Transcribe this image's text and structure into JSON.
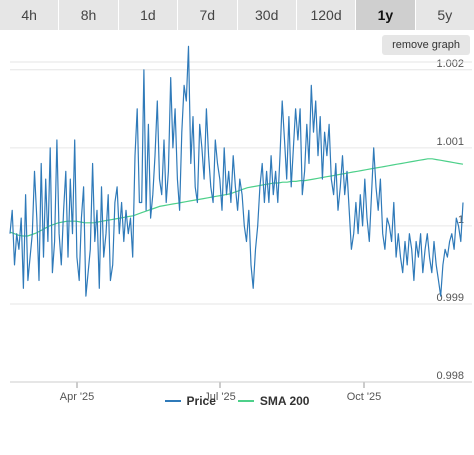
{
  "range_buttons": [
    {
      "label": "4h",
      "active": false
    },
    {
      "label": "8h",
      "active": false
    },
    {
      "label": "1d",
      "active": false
    },
    {
      "label": "7d",
      "active": false
    },
    {
      "label": "30d",
      "active": false
    },
    {
      "label": "120d",
      "active": false
    },
    {
      "label": "1y",
      "active": true
    },
    {
      "label": "5y",
      "active": false
    }
  ],
  "remove_graph_label": "remove graph",
  "colors": {
    "price": "#2f7ab9",
    "sma": "#4dd08a",
    "grid": "#e6e6e6"
  },
  "chart_data": {
    "type": "line",
    "x_ticks": [
      "Apr '25",
      "Jul '25",
      "Oct '25"
    ],
    "y_ticks": [
      "0.998",
      "0.999",
      "1",
      "1.001",
      "1.002"
    ],
    "ylim": [
      0.998,
      1.0021
    ],
    "series": [
      {
        "name": "Price",
        "values": [
          0.9999,
          1.0002,
          0.9995,
          0.9999,
          0.9997,
          1.0001,
          0.9992,
          1.0004,
          0.9993,
          0.9996,
          0.9999,
          1.0007,
          1.0001,
          0.9993,
          1.0008,
          0.9996,
          1.0006,
          0.9998,
          1.001,
          0.9994,
          0.9998,
          1.0011,
          0.9999,
          0.9995,
          1.0002,
          1.0007,
          0.9996,
          1.0006,
          0.9999,
          1.0011,
          0.9996,
          0.9993,
          1.0001,
          1.0005,
          0.9991,
          0.9994,
          0.9997,
          1.0008,
          0.9998,
          1.0002,
          0.9992,
          1.0005,
          0.9996,
          0.9999,
          1.0004,
          0.9993,
          0.9995,
          1.0003,
          1.0005,
          0.9999,
          1.0003,
          0.9998,
          1.0002,
          0.9999,
          1.0001,
          0.9996,
          1.0009,
          1.0015,
          1.0003,
          1.0003,
          1.002,
          1.0002,
          1.0013,
          1.0001,
          1.0004,
          1.0009,
          1.0016,
          1.0006,
          1.0004,
          1.0011,
          1.0003,
          1.0007,
          1.0019,
          1.001,
          1.0015,
          1.0006,
          1.0002,
          1.0012,
          1.0018,
          1.0016,
          1.0023,
          1.0008,
          1.0014,
          1.0005,
          1.0003,
          1.0013,
          1.001,
          1.0006,
          1.0015,
          1.0009,
          1.0005,
          1.0003,
          1.0011,
          1.0008,
          1.0006,
          1.0002,
          1.001,
          1.0004,
          1.0007,
          1.0003,
          1.0009,
          1.0005,
          1.0002,
          1.0006,
          1.0004,
          1.0,
          0.9998,
          1.0002,
          0.9995,
          0.9992,
          0.9997,
          1.0,
          1.0005,
          1.0008,
          1.0003,
          1.0007,
          1.0003,
          1.0009,
          1.0004,
          1.0007,
          1.0003,
          1.0009,
          1.0016,
          1.0011,
          1.0006,
          1.0014,
          1.0005,
          1.001,
          1.0015,
          1.0011,
          1.0015,
          1.0004,
          1.0007,
          1.0013,
          1.0008,
          1.0018,
          1.0012,
          1.0016,
          1.0009,
          1.0014,
          1.0006,
          1.0012,
          1.0009,
          1.0013,
          1.0006,
          1.0004,
          1.0008,
          1.0002,
          1.0005,
          1.0009,
          1.0004,
          1.0007,
          1.0002,
          0.9997,
          0.9999,
          1.0003,
          0.9999,
          1.0004,
          1.0,
          1.0006,
          1.0001,
          0.9998,
          1.0004,
          1.001,
          1.0005,
          1.0002,
          1.0006,
          0.9999,
          0.9997,
          1.0001,
          1.0,
          0.9998,
          1.0003,
          0.9996,
          0.9999,
          0.9996,
          0.9994,
          0.9998,
          0.9995,
          0.9999,
          0.9997,
          0.9993,
          0.9998,
          0.9996,
          0.9999,
          0.9994,
          0.9997,
          0.9999,
          0.9996,
          0.9994,
          0.9998,
          0.9995,
          0.9993,
          0.9991,
          0.9995,
          0.9997,
          0.9996,
          0.9998,
          0.9999,
          0.9997,
          1.0001,
          1.0,
          0.9998,
          1.0003
        ]
      },
      {
        "name": "SMA 200",
        "values": [
          0.99992,
          0.9999,
          0.99988,
          0.99987,
          0.99987,
          0.99989,
          0.99991,
          0.99994,
          0.99997,
          1.0,
          1.00002,
          1.00004,
          1.00005,
          1.00006,
          1.00006,
          1.00006,
          1.00005,
          1.00004,
          1.00004,
          1.00004,
          1.00005,
          1.00006,
          1.00007,
          1.00008,
          1.00009,
          1.0001,
          1.00011,
          1.00012,
          1.00013,
          1.00015,
          1.00017,
          1.00019,
          1.00021,
          1.00023,
          1.00025,
          1.00026,
          1.00027,
          1.00028,
          1.00029,
          1.0003,
          1.00031,
          1.00032,
          1.00033,
          1.00034,
          1.00035,
          1.00036,
          1.00037,
          1.00038,
          1.00039,
          1.0004,
          1.00041,
          1.00043,
          1.00045,
          1.00047,
          1.00049,
          1.0005,
          1.00051,
          1.00052,
          1.00053,
          1.00054,
          1.00055,
          1.00055,
          1.00056,
          1.00056,
          1.00057,
          1.00057,
          1.00058,
          1.00058,
          1.00059,
          1.0006,
          1.00061,
          1.00062,
          1.00063,
          1.00064,
          1.00065,
          1.00066,
          1.00067,
          1.00068,
          1.00069,
          1.0007,
          1.00071,
          1.00072,
          1.00073,
          1.00074,
          1.00075,
          1.00076,
          1.00077,
          1.00078,
          1.00079,
          1.0008,
          1.00081,
          1.00082,
          1.00083,
          1.00084,
          1.00085,
          1.00086,
          1.00086,
          1.00085,
          1.00084,
          1.00083,
          1.00082,
          1.00081,
          1.0008,
          1.00079
        ]
      }
    ]
  }
}
